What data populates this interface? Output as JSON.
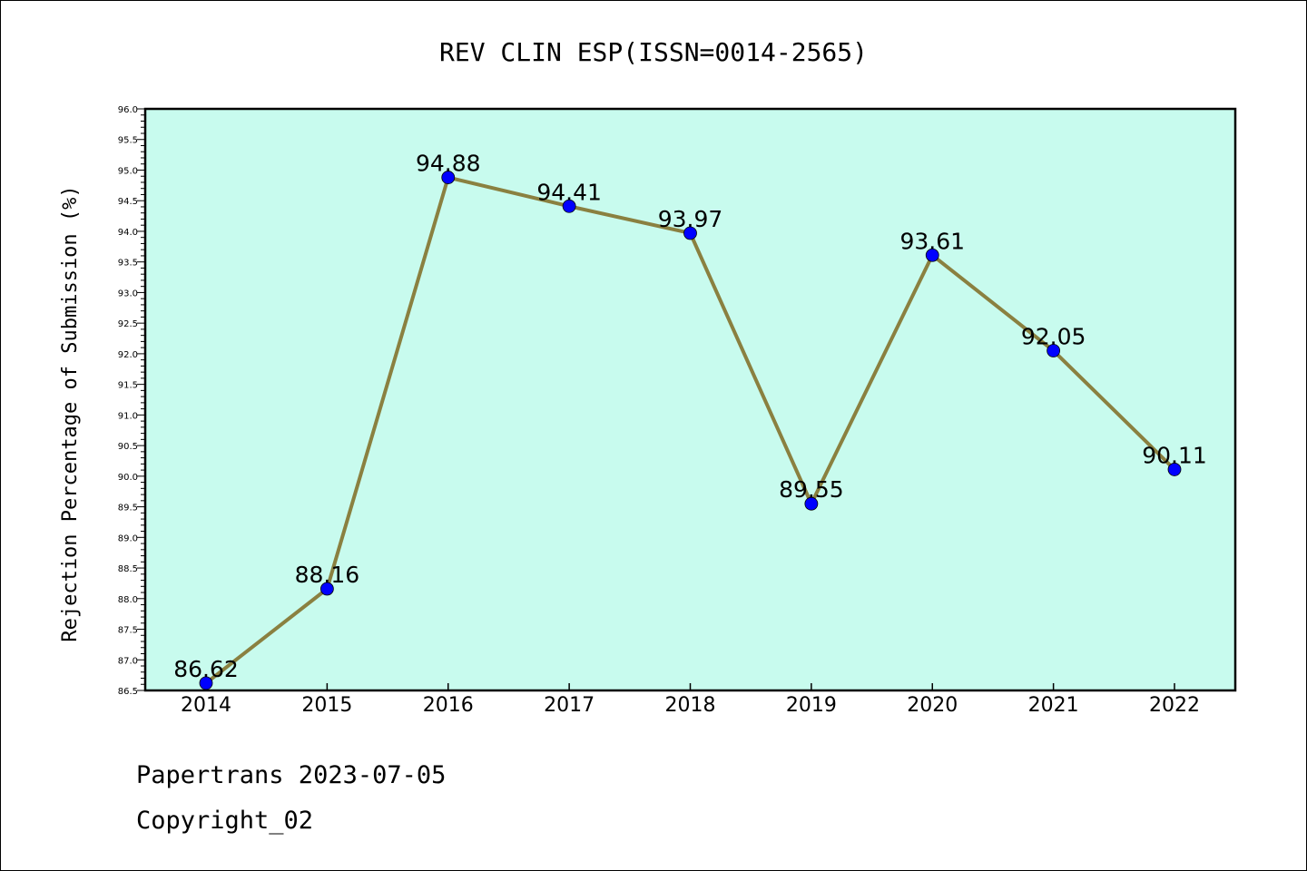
{
  "chart_data": {
    "type": "line",
    "title": "REV CLIN ESP(ISSN=0014-2565)",
    "xlabel": "",
    "ylabel": "Rejection Percentage of Submission (%)",
    "categories": [
      "2014",
      "2015",
      "2016",
      "2017",
      "2018",
      "2019",
      "2020",
      "2021",
      "2022"
    ],
    "values": [
      86.62,
      88.16,
      94.88,
      94.41,
      93.97,
      89.55,
      93.61,
      92.05,
      90.11
    ],
    "data_labels": [
      "86.62",
      "88.16",
      "94.88",
      "94.41",
      "93.97",
      "89.55",
      "93.61",
      "92.05",
      "90.11"
    ],
    "ylim": [
      86.5,
      96.0
    ],
    "yticks": [
      "86.5",
      "87.0",
      "87.5",
      "88.0",
      "88.5",
      "89.0",
      "89.5",
      "90.0",
      "90.5",
      "91.0",
      "91.5",
      "92.0",
      "92.5",
      "93.0",
      "93.5",
      "94.0",
      "94.5",
      "95.0",
      "95.5",
      "96.0"
    ],
    "grid": false,
    "legend": "none",
    "colors": {
      "plot_background": "#c8fbee",
      "line": "#8a8040",
      "marker": "#0000ff"
    }
  },
  "footer": {
    "line1": "Papertrans 2023-07-05",
    "line2": "Copyright_02"
  }
}
